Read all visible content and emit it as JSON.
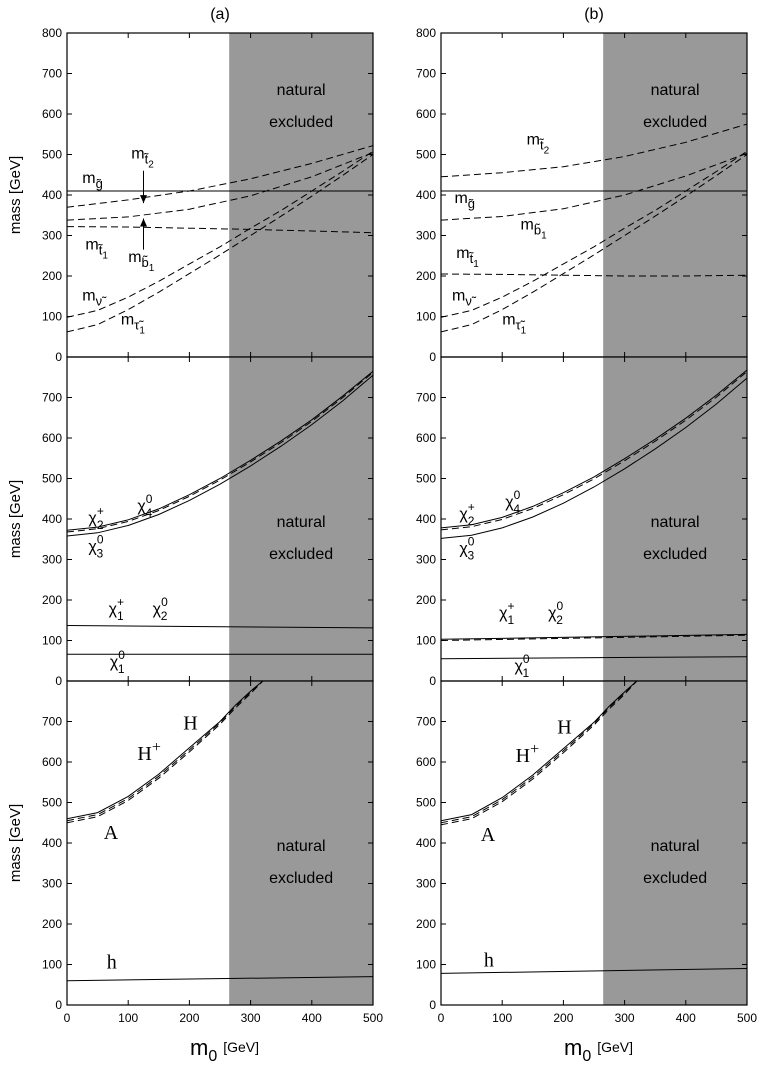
{
  "chart_data": [
    {
      "column": "a",
      "row": 1,
      "type": "line",
      "panel_label": "(a)",
      "ylabel": "mass [GeV]",
      "xlim": [
        0,
        500
      ],
      "ylim": [
        0,
        800
      ],
      "yticks": [
        0,
        100,
        200,
        300,
        400,
        500,
        600,
        700,
        800
      ],
      "shade": {
        "from": 265,
        "to": 500,
        "text": [
          "natural",
          "excluded"
        ]
      },
      "series": [
        {
          "dash": false,
          "x": [
            0,
            500
          ],
          "y": [
            410,
            410
          ]
        },
        {
          "dash": true,
          "x": [
            0,
            100,
            200,
            300,
            400,
            500
          ],
          "y": [
            370,
            388,
            410,
            440,
            478,
            522
          ]
        },
        {
          "dash": true,
          "x": [
            0,
            100,
            200,
            300,
            400,
            500
          ],
          "y": [
            338,
            346,
            365,
            398,
            445,
            505
          ]
        },
        {
          "dash": true,
          "x": [
            0,
            100,
            200,
            300,
            400,
            500
          ],
          "y": [
            322,
            321,
            318,
            315,
            311,
            307
          ]
        },
        {
          "dash": true,
          "x": [
            0,
            50,
            100,
            150,
            200,
            250,
            300,
            350,
            400,
            450,
            500
          ],
          "y": [
            98,
            115,
            148,
            187,
            230,
            272,
            318,
            362,
            410,
            458,
            508
          ]
        },
        {
          "dash": true,
          "x": [
            0,
            50,
            100,
            150,
            200,
            250,
            300,
            350,
            400,
            450,
            500
          ],
          "y": [
            62,
            80,
            117,
            160,
            206,
            252,
            300,
            348,
            397,
            448,
            500
          ]
        }
      ],
      "labels": [
        {
          "text": "m",
          "sub": "g̃",
          "x": 25,
          "y": 430
        },
        {
          "text": "m",
          "sub": "t̃",
          "sub2": "2",
          "x": 105,
          "y": 490
        },
        {
          "text": "m",
          "sub": "t̃",
          "sub2": "1",
          "x": 30,
          "y": 265
        },
        {
          "text": "m",
          "sub": "b̃",
          "sub2": "1",
          "x": 100,
          "y": 235
        },
        {
          "text": "m",
          "sub": "ν̃",
          "x": 25,
          "y": 140
        },
        {
          "text": "m",
          "sub": "τ̃",
          "sub2": "1",
          "x": 88,
          "y": 80
        }
      ],
      "arrows": [
        {
          "x": 125,
          "y1": 460,
          "y2": 380
        },
        {
          "x": 125,
          "y1": 265,
          "y2": 342
        }
      ]
    },
    {
      "column": "b",
      "row": 1,
      "type": "line",
      "panel_label": "(b)",
      "ylabel": "",
      "xlim": [
        0,
        500
      ],
      "ylim": [
        0,
        800
      ],
      "yticks": [
        0,
        100,
        200,
        300,
        400,
        500,
        600,
        700,
        800
      ],
      "shade": {
        "from": 265,
        "to": 500,
        "text": [
          "natural",
          "excluded"
        ]
      },
      "series": [
        {
          "dash": false,
          "x": [
            0,
            500
          ],
          "y": [
            410,
            410
          ]
        },
        {
          "dash": true,
          "x": [
            0,
            100,
            200,
            300,
            400,
            500
          ],
          "y": [
            445,
            455,
            470,
            495,
            530,
            575
          ]
        },
        {
          "dash": true,
          "x": [
            0,
            100,
            200,
            300,
            400,
            500
          ],
          "y": [
            338,
            347,
            366,
            400,
            447,
            503
          ]
        },
        {
          "dash": true,
          "x": [
            0,
            100,
            200,
            300,
            400,
            500
          ],
          "y": [
            205,
            204,
            202,
            200,
            200,
            202
          ]
        },
        {
          "dash": true,
          "x": [
            0,
            50,
            100,
            150,
            200,
            250,
            300,
            350,
            400,
            450,
            500
          ],
          "y": [
            98,
            115,
            148,
            187,
            230,
            272,
            318,
            362,
            410,
            458,
            508
          ]
        },
        {
          "dash": true,
          "x": [
            0,
            50,
            100,
            150,
            200,
            250,
            300,
            350,
            400,
            450,
            500
          ],
          "y": [
            62,
            80,
            117,
            160,
            206,
            252,
            300,
            348,
            397,
            448,
            500
          ]
        }
      ],
      "labels": [
        {
          "text": "m",
          "sub": "t̃",
          "sub2": "2",
          "x": 140,
          "y": 525
        },
        {
          "text": "m",
          "sub": "g̃",
          "x": 22,
          "y": 380
        },
        {
          "text": "m",
          "sub": "b̃",
          "sub2": "1",
          "x": 130,
          "y": 315
        },
        {
          "text": "m",
          "sub": "t̃",
          "sub2": "1",
          "x": 25,
          "y": 245
        },
        {
          "text": "m",
          "sub": "ν̃",
          "x": 18,
          "y": 140
        },
        {
          "text": "m",
          "sub": "τ̃",
          "sub2": "1",
          "x": 100,
          "y": 80
        }
      ],
      "arrows": []
    },
    {
      "column": "a",
      "row": 2,
      "type": "line",
      "ylabel": "mass [GeV]",
      "xlim": [
        0,
        500
      ],
      "ylim": [
        0,
        800
      ],
      "yticks": [
        0,
        100,
        200,
        300,
        400,
        500,
        600,
        700
      ],
      "shade": {
        "from": 265,
        "to": 500,
        "text": [
          "natural",
          "excluded"
        ]
      },
      "series": [
        {
          "dash": false,
          "x": [
            0,
            50,
            100,
            150,
            200,
            250,
            300,
            350,
            400,
            450,
            500
          ],
          "y": [
            372,
            380,
            398,
            425,
            460,
            500,
            545,
            593,
            645,
            703,
            765
          ]
        },
        {
          "dash": true,
          "x": [
            0,
            50,
            100,
            150,
            200,
            250,
            300,
            350,
            400,
            450,
            500
          ],
          "y": [
            368,
            376,
            394,
            421,
            456,
            496,
            541,
            589,
            641,
            699,
            762
          ]
        },
        {
          "dash": false,
          "x": [
            0,
            50,
            100,
            150,
            200,
            250,
            300,
            350,
            400,
            450,
            500
          ],
          "y": [
            358,
            366,
            384,
            411,
            446,
            486,
            531,
            580,
            633,
            691,
            755
          ]
        },
        {
          "dash": false,
          "x": [
            0,
            500
          ],
          "y": [
            137,
            131
          ]
        },
        {
          "dash": false,
          "x": [
            0,
            500
          ],
          "y": [
            66,
            66
          ]
        }
      ],
      "labels": [
        {
          "text": "χ",
          "sub": "2",
          "sup": "+",
          "x": 35,
          "y": 390
        },
        {
          "text": "χ",
          "sub": "4",
          "sup": "0",
          "x": 115,
          "y": 420
        },
        {
          "text": "χ",
          "sub": "3",
          "sup": "0",
          "x": 35,
          "y": 320
        },
        {
          "text": "χ",
          "sub": "1",
          "sup": "+",
          "x": 68,
          "y": 165
        },
        {
          "text": "χ",
          "sub": "2",
          "sup": "0",
          "x": 140,
          "y": 165
        },
        {
          "text": "χ",
          "sub": "1",
          "sup": "0",
          "x": 70,
          "y": 35
        }
      ],
      "arrows": []
    },
    {
      "column": "b",
      "row": 2,
      "type": "line",
      "ylabel": "",
      "xlim": [
        0,
        500
      ],
      "ylim": [
        0,
        800
      ],
      "yticks": [
        0,
        100,
        200,
        300,
        400,
        500,
        600,
        700
      ],
      "shade": {
        "from": 265,
        "to": 500,
        "text": [
          "natural",
          "excluded"
        ]
      },
      "series": [
        {
          "dash": false,
          "x": [
            0,
            50,
            100,
            150,
            200,
            250,
            300,
            350,
            400,
            450,
            500
          ],
          "y": [
            378,
            386,
            404,
            431,
            465,
            504,
            549,
            597,
            649,
            706,
            768
          ]
        },
        {
          "dash": true,
          "x": [
            0,
            50,
            100,
            150,
            200,
            250,
            300,
            350,
            400,
            450,
            500
          ],
          "y": [
            373,
            381,
            399,
            426,
            460,
            499,
            544,
            592,
            644,
            701,
            764
          ]
        },
        {
          "dash": false,
          "x": [
            0,
            50,
            100,
            150,
            200,
            250,
            300,
            350,
            400,
            450,
            500
          ],
          "y": [
            352,
            360,
            378,
            405,
            439,
            479,
            524,
            573,
            626,
            684,
            748
          ]
        },
        {
          "dash": false,
          "x": [
            0,
            500
          ],
          "y": [
            103,
            115
          ]
        },
        {
          "dash": true,
          "x": [
            0,
            500
          ],
          "y": [
            100,
            113
          ]
        },
        {
          "dash": false,
          "x": [
            0,
            500
          ],
          "y": [
            55,
            60
          ]
        }
      ],
      "labels": [
        {
          "text": "χ",
          "sub": "2",
          "sup": "+",
          "x": 30,
          "y": 400
        },
        {
          "text": "χ",
          "sub": "4",
          "sup": "0",
          "x": 105,
          "y": 430
        },
        {
          "text": "χ",
          "sub": "3",
          "sup": "0",
          "x": 30,
          "y": 315
        },
        {
          "text": "χ",
          "sub": "1",
          "sup": "+",
          "x": 95,
          "y": 155
        },
        {
          "text": "χ",
          "sub": "2",
          "sup": "0",
          "x": 175,
          "y": 155
        },
        {
          "text": "χ",
          "sub": "1",
          "sup": "0",
          "x": 120,
          "y": 25
        }
      ],
      "arrows": []
    },
    {
      "column": "a",
      "row": 3,
      "type": "line",
      "ylabel": "mass [GeV]",
      "xlim": [
        0,
        500
      ],
      "ylim": [
        0,
        800
      ],
      "yticks": [
        0,
        100,
        200,
        300,
        400,
        500,
        600,
        700
      ],
      "xticks": [
        0,
        100,
        200,
        300,
        400,
        500
      ],
      "xlabel": "m",
      "xlabel_sub": "0",
      "xlabel_unit": "[GeV]",
      "shade": {
        "from": 265,
        "to": 500,
        "text": [
          "natural",
          "excluded"
        ]
      },
      "series": [
        {
          "dash": false,
          "x": [
            0,
            50,
            100,
            150,
            200,
            250,
            275,
            300,
            320
          ],
          "y": [
            460,
            475,
            515,
            570,
            635,
            700,
            740,
            775,
            800
          ]
        },
        {
          "dash": true,
          "x": [
            0,
            50,
            100,
            150,
            200,
            250,
            275,
            300,
            320
          ],
          "y": [
            455,
            470,
            510,
            565,
            630,
            697,
            737,
            772,
            800
          ]
        },
        {
          "dash": true,
          "x": [
            0,
            50,
            100,
            150,
            200,
            250,
            275,
            300,
            320
          ],
          "y": [
            450,
            465,
            505,
            560,
            625,
            693,
            733,
            769,
            800
          ]
        },
        {
          "dash": false,
          "x": [
            0,
            500
          ],
          "y": [
            60,
            70
          ]
        }
      ],
      "labels": [
        {
          "text": "H",
          "x": 190,
          "y": 680,
          "big": true
        },
        {
          "text": "H",
          "sup": "+",
          "x": 115,
          "y": 605,
          "big": true
        },
        {
          "text": "A",
          "x": 60,
          "y": 410,
          "big": true
        },
        {
          "text": "h",
          "x": 65,
          "y": 90,
          "big": true
        }
      ],
      "arrows": []
    },
    {
      "column": "b",
      "row": 3,
      "type": "line",
      "ylabel": "",
      "xlim": [
        0,
        500
      ],
      "ylim": [
        0,
        800
      ],
      "yticks": [
        0,
        100,
        200,
        300,
        400,
        500,
        600,
        700
      ],
      "xticks": [
        0,
        100,
        200,
        300,
        400,
        500
      ],
      "xlabel": "m",
      "xlabel_sub": "0",
      "xlabel_unit": "[GeV]",
      "shade": {
        "from": 265,
        "to": 500,
        "text": [
          "natural",
          "excluded"
        ]
      },
      "series": [
        {
          "dash": false,
          "x": [
            0,
            50,
            100,
            150,
            200,
            250,
            275,
            300,
            320
          ],
          "y": [
            455,
            470,
            512,
            568,
            633,
            698,
            738,
            773,
            800
          ]
        },
        {
          "dash": true,
          "x": [
            0,
            50,
            100,
            150,
            200,
            250,
            275,
            300,
            320
          ],
          "y": [
            450,
            465,
            507,
            563,
            628,
            695,
            735,
            770,
            800
          ]
        },
        {
          "dash": true,
          "x": [
            0,
            50,
            100,
            150,
            200,
            250,
            275,
            300,
            320
          ],
          "y": [
            445,
            460,
            502,
            558,
            623,
            691,
            731,
            767,
            800
          ]
        },
        {
          "dash": false,
          "x": [
            0,
            500
          ],
          "y": [
            78,
            90
          ]
        }
      ],
      "labels": [
        {
          "text": "H",
          "x": 190,
          "y": 670,
          "big": true
        },
        {
          "text": "H",
          "sup": "+",
          "x": 122,
          "y": 600,
          "big": true
        },
        {
          "text": "A",
          "x": 65,
          "y": 405,
          "big": true
        },
        {
          "text": "h",
          "x": 70,
          "y": 95,
          "big": true
        }
      ],
      "arrows": []
    }
  ]
}
